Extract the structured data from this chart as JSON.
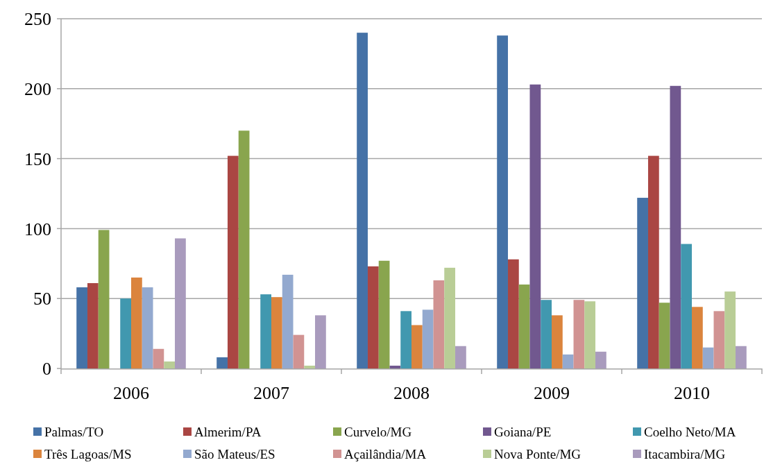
{
  "chart_data": {
    "type": "bar",
    "categories": [
      "2006",
      "2007",
      "2008",
      "2009",
      "2010"
    ],
    "series": [
      {
        "name": "Palmas/TO",
        "color": "#4572a7",
        "values": [
          58,
          8,
          240,
          238,
          122
        ]
      },
      {
        "name": "Almerim/PA",
        "color": "#aa4643",
        "values": [
          61,
          152,
          73,
          78,
          152
        ]
      },
      {
        "name": "Curvelo/MG",
        "color": "#89a54e",
        "values": [
          99,
          170,
          77,
          60,
          47
        ]
      },
      {
        "name": "Goiana/PE",
        "color": "#71588f",
        "values": [
          0,
          0,
          2,
          203,
          202
        ]
      },
      {
        "name": "Coelho Neto/MA",
        "color": "#4198af",
        "values": [
          50,
          53,
          41,
          49,
          89
        ]
      },
      {
        "name": "Três Lagoas/MS",
        "color": "#db843d",
        "values": [
          65,
          51,
          31,
          38,
          44
        ]
      },
      {
        "name": "São Mateus/ES",
        "color": "#93a9cf",
        "values": [
          58,
          67,
          42,
          10,
          15
        ]
      },
      {
        "name": "Açailândia/MA",
        "color": "#d19392",
        "values": [
          14,
          24,
          63,
          49,
          41
        ]
      },
      {
        "name": "Nova Ponte/MG",
        "color": "#b9cd96",
        "values": [
          5,
          2,
          72,
          48,
          55
        ]
      },
      {
        "name": "Itacambira/MG",
        "color": "#a99bbd",
        "values": [
          93,
          38,
          16,
          12,
          16
        ]
      }
    ],
    "ylim": [
      0,
      250
    ],
    "yticks": [
      0,
      50,
      100,
      150,
      200,
      250
    ],
    "grid": "y",
    "legend": "bottom"
  }
}
